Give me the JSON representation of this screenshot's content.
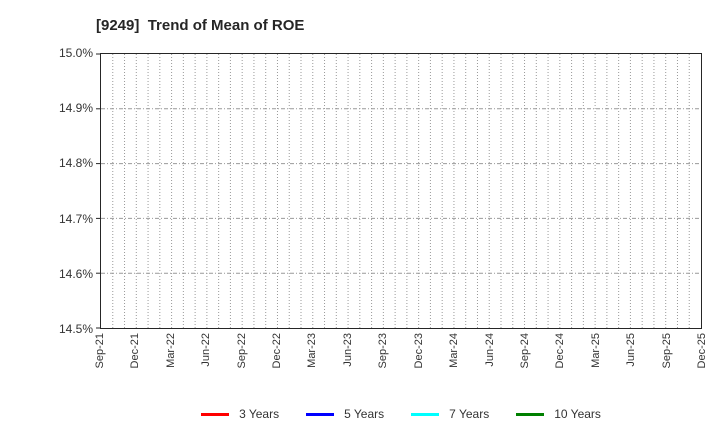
{
  "title": "[9249]  Trend of Mean of ROE",
  "chart_data": {
    "type": "line",
    "title": "[9249]  Trend of Mean of ROE",
    "x_tick_labels": [
      "Sep-21",
      "Dec-21",
      "Mar-22",
      "Jun-22",
      "Sep-22",
      "Dec-22",
      "Mar-23",
      "Jun-23",
      "Sep-23",
      "Dec-23",
      "Mar-24",
      "Jun-24",
      "Sep-24",
      "Dec-24",
      "Mar-25",
      "Jun-25",
      "Sep-25",
      "Dec-25"
    ],
    "x_minor_gridline_intervals": 51,
    "y_tick_labels": [
      "15.0%",
      "14.9%",
      "14.8%",
      "14.7%",
      "14.6%",
      "14.5%"
    ],
    "ylim": [
      14.5,
      15.0
    ],
    "y_tick_step": 0.1,
    "xlabel": "",
    "ylabel": "",
    "grid": true,
    "legend_position": "bottom-center",
    "series": [
      {
        "name": "3 Years",
        "color": "#ff0000",
        "values": []
      },
      {
        "name": "5 Years",
        "color": "#0000ff",
        "values": []
      },
      {
        "name": "7 Years",
        "color": "#00ffff",
        "values": []
      },
      {
        "name": "10 Years",
        "color": "#008000",
        "values": []
      }
    ],
    "plot_area_note": "No data lines are visible within the plotted axis range."
  },
  "colors": {
    "background": "#ffffff",
    "axis_border": "#262626",
    "grid": "#999999",
    "title_text": "#262626",
    "tick_text": "#333333",
    "legend_text": "#333333"
  }
}
